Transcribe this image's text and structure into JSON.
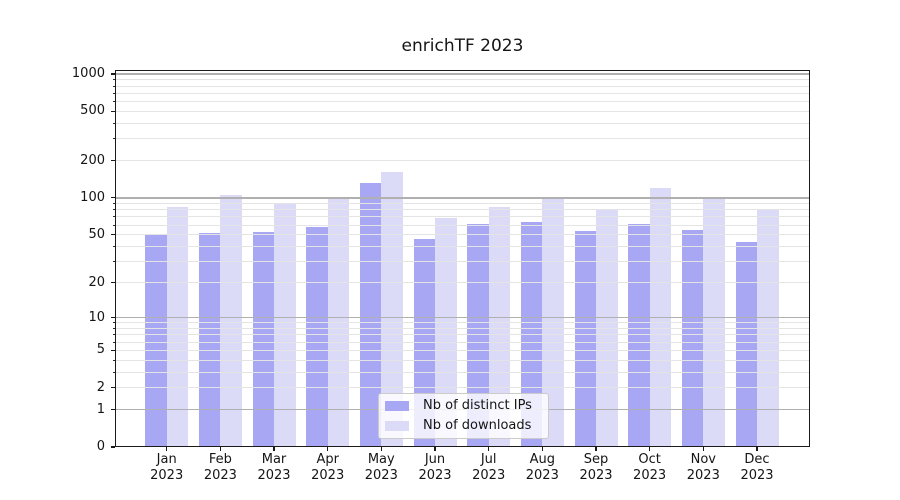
{
  "title": "enrichTF 2023",
  "chart_data": {
    "type": "bar",
    "title": "enrichTF 2023",
    "yscale": "symlog-like (log10(1+v))",
    "categories": [
      "Jan",
      "Feb",
      "Mar",
      "Apr",
      "May",
      "Jun",
      "Jul",
      "Aug",
      "Sep",
      "Oct",
      "Nov",
      "Dec"
    ],
    "category_year": "2023",
    "series": [
      {
        "name": "Nb of distinct IPs",
        "color": "#a7a7f3",
        "values": [
          51,
          52,
          53,
          58,
          132,
          46,
          61,
          64,
          54,
          61,
          55,
          44
        ]
      },
      {
        "name": "Nb of downloads",
        "color": "#dbdbf8",
        "values": [
          84,
          105,
          91,
          98,
          162,
          69,
          84,
          102,
          79,
          120,
          98,
          80
        ]
      }
    ],
    "y_ticks": [
      0,
      1,
      2,
      5,
      10,
      20,
      50,
      100,
      200,
      500,
      1000
    ],
    "y_major_grid": [
      1,
      10,
      100,
      1000
    ],
    "y_minor_ticks": [
      3,
      4,
      6,
      7,
      8,
      9,
      30,
      40,
      60,
      70,
      80,
      90,
      300,
      400,
      600,
      700,
      800,
      900
    ],
    "ylim": [
      0,
      1078
    ],
    "grid": "horizontal major+minor, drawn over bars",
    "legend_position": "lower center inside plot",
    "colors": {
      "major_grid": "#b0b0b0",
      "minor_grid": "#e4e4e4",
      "spine": "#1a1a1a",
      "background": "#ffffff"
    }
  }
}
